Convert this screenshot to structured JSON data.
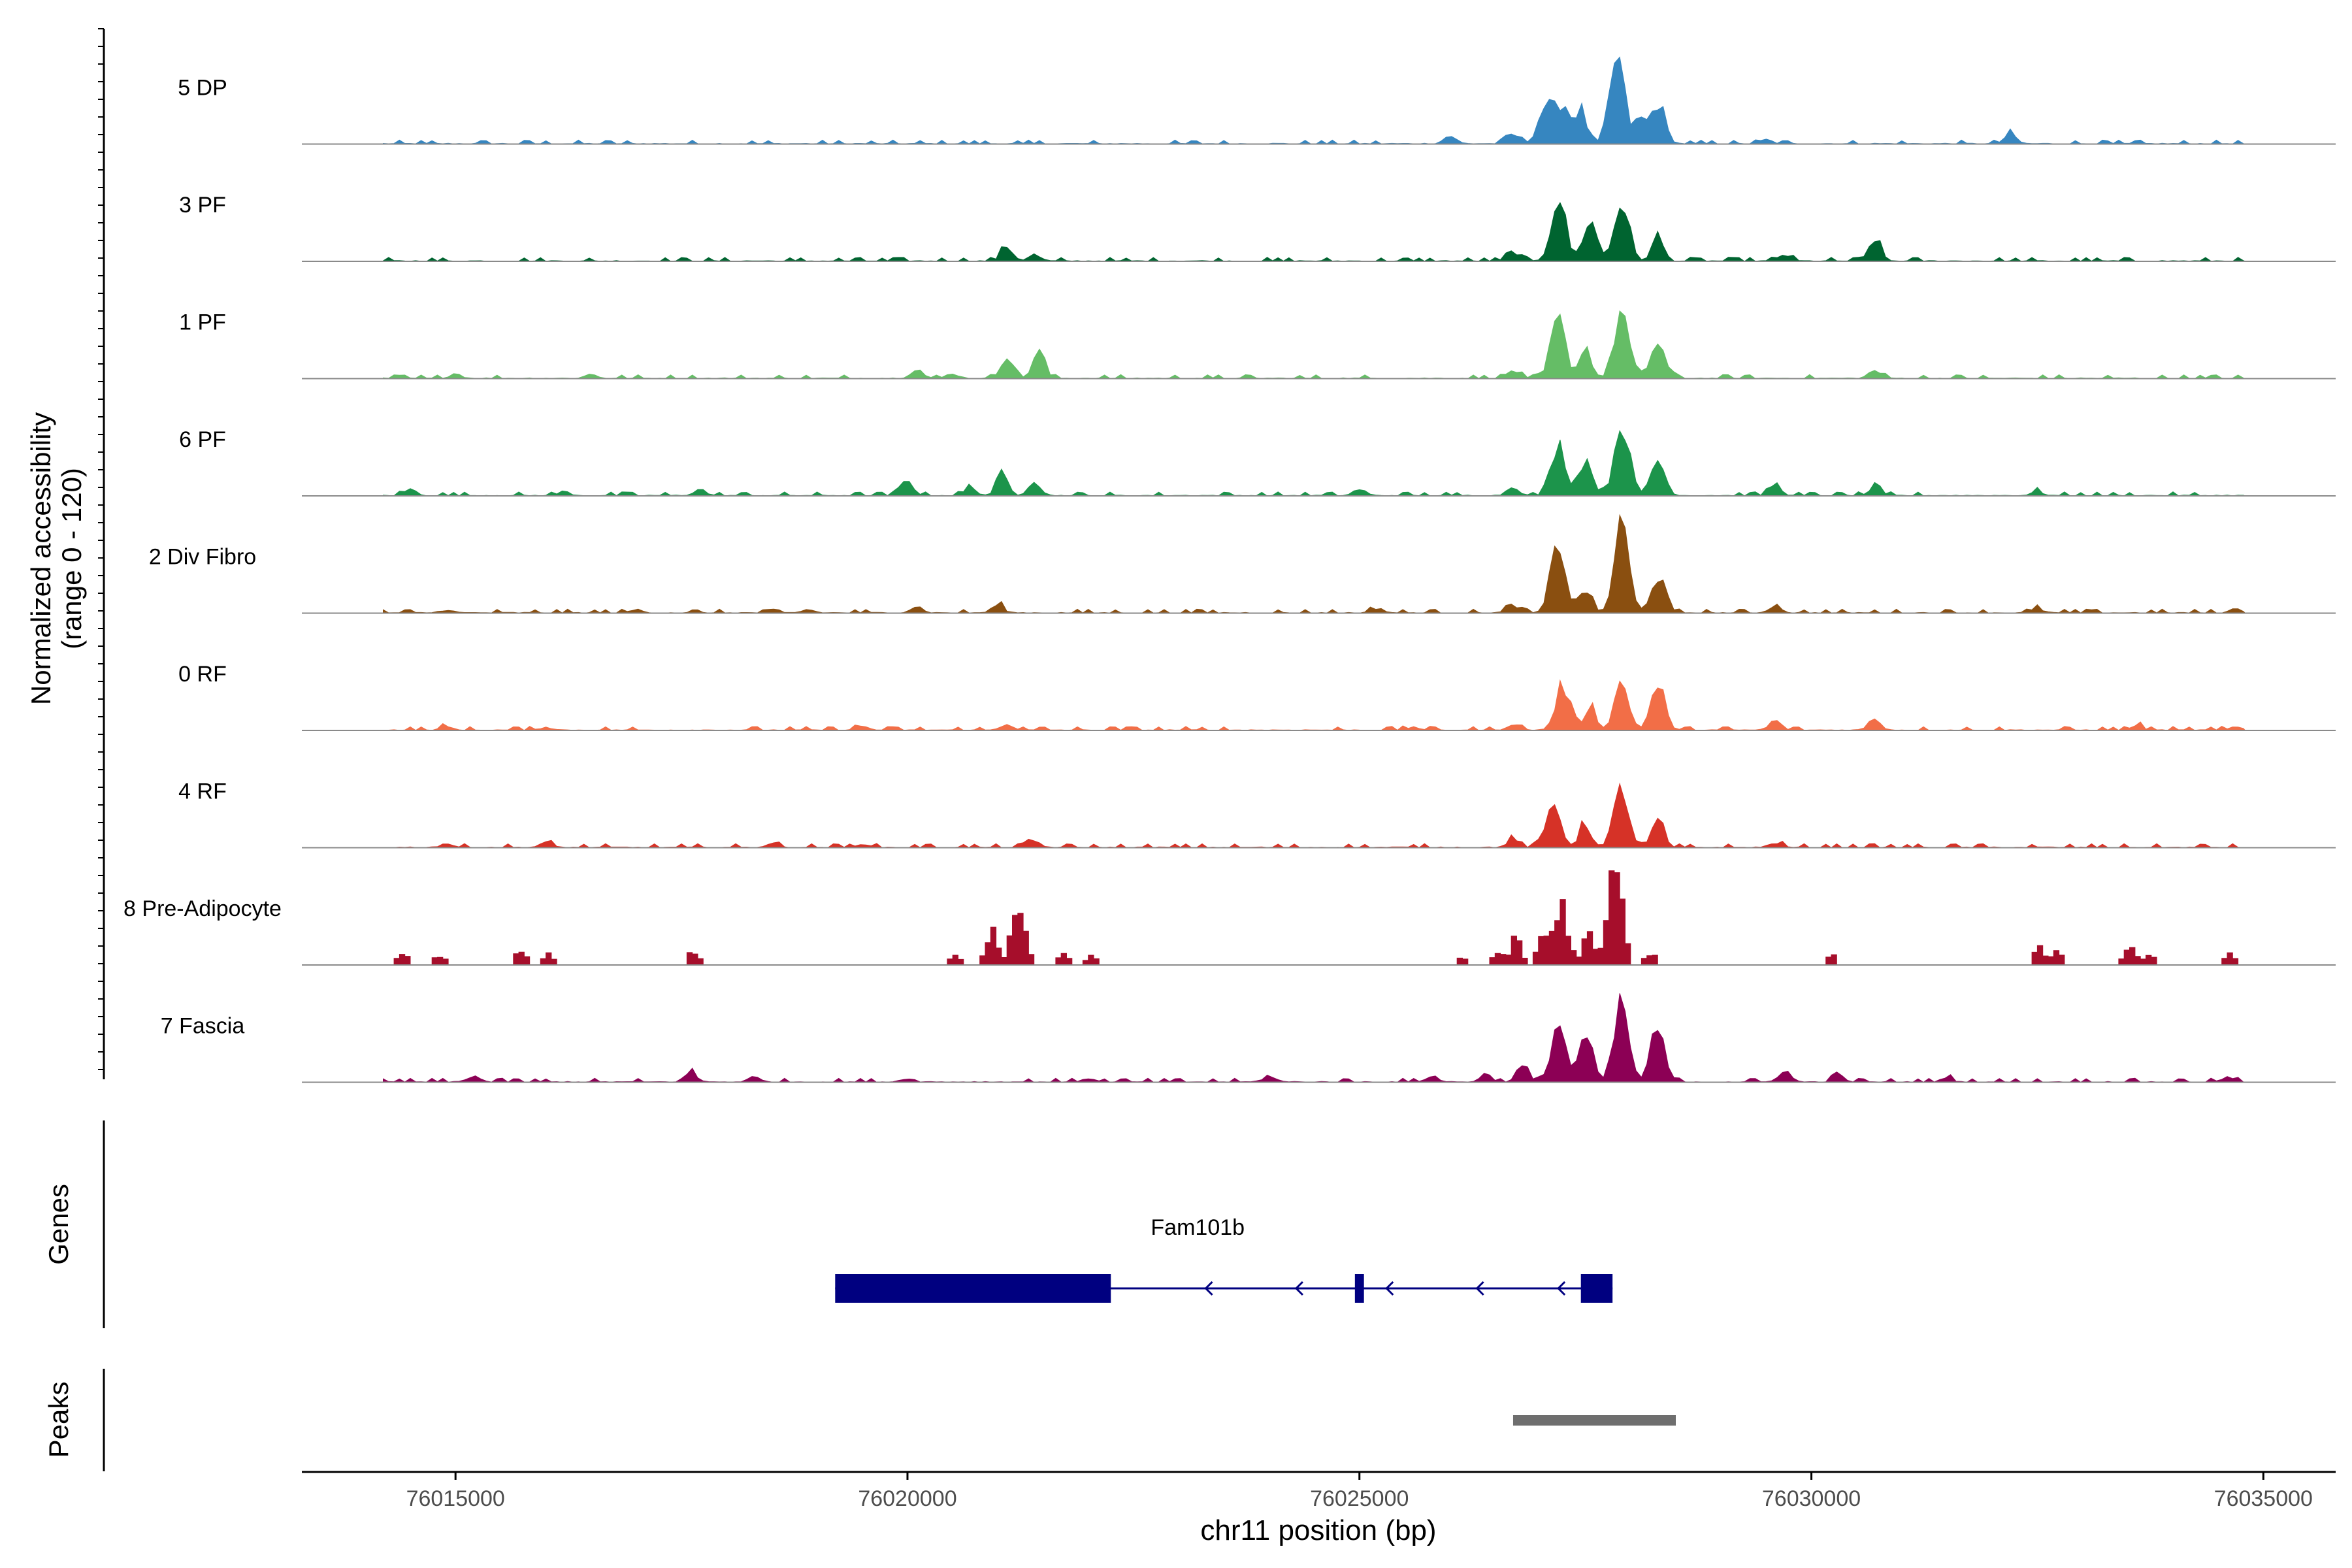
{
  "chart_data": {
    "type": "area",
    "title": "",
    "ylabel_line1": "Normalized accessibility",
    "ylabel_line2": "(range 0 - 120)",
    "xlabel": "chr11 position (bp)",
    "chromosome": "chr11",
    "xlim": [
      76013300,
      76035800
    ],
    "ylim": [
      0,
      120
    ],
    "x_ticks": [
      76015000,
      76020000,
      76025000,
      76030000,
      76035000
    ],
    "x_tick_labels": [
      "76015000",
      "76020000",
      "76025000",
      "76030000",
      "76035000"
    ],
    "tracks": [
      {
        "name": "5 DP",
        "color": "#3686C0",
        "style": "smooth",
        "peaks": [
          [
            76026000,
            10
          ],
          [
            76026700,
            12
          ],
          [
            76027050,
            45
          ],
          [
            76027250,
            50
          ],
          [
            76027450,
            40
          ],
          [
            76027850,
            110
          ],
          [
            76028100,
            30
          ],
          [
            76028300,
            50
          ],
          [
            76032200,
            12
          ],
          [
            76029500,
            5
          ]
        ]
      },
      {
        "name": "3 PF",
        "color": "#006430",
        "style": "smooth",
        "peaks": [
          [
            76021100,
            18
          ],
          [
            76021400,
            8
          ],
          [
            76026700,
            12
          ],
          [
            76027200,
            80
          ],
          [
            76027550,
            50
          ],
          [
            76027900,
            75
          ],
          [
            76028300,
            30
          ],
          [
            76030700,
            28
          ],
          [
            76029700,
            8
          ]
        ]
      },
      {
        "name": "1 PF",
        "color": "#65BD66",
        "style": "smooth",
        "peaks": [
          [
            76015000,
            6
          ],
          [
            76016500,
            5
          ],
          [
            76020100,
            12
          ],
          [
            76020500,
            6
          ],
          [
            76021100,
            30
          ],
          [
            76021450,
            35
          ],
          [
            76026700,
            10
          ],
          [
            76027200,
            75
          ],
          [
            76027500,
            40
          ],
          [
            76027900,
            85
          ],
          [
            76028300,
            45
          ],
          [
            76030700,
            10
          ]
        ]
      },
      {
        "name": "6 PF",
        "color": "#1C944B",
        "style": "smooth",
        "peaks": [
          [
            76014500,
            8
          ],
          [
            76016200,
            5
          ],
          [
            76017700,
            8
          ],
          [
            76020000,
            20
          ],
          [
            76020700,
            10
          ],
          [
            76021050,
            25
          ],
          [
            76021400,
            20
          ],
          [
            76025000,
            8
          ],
          [
            76026700,
            12
          ],
          [
            76027200,
            65
          ],
          [
            76027500,
            45
          ],
          [
            76027900,
            95
          ],
          [
            76028300,
            45
          ],
          [
            76029600,
            15
          ],
          [
            76030700,
            10
          ],
          [
            76032500,
            5
          ]
        ]
      },
      {
        "name": "2 Div Fibro",
        "color": "#8A4F10",
        "style": "smooth",
        "peaks": [
          [
            76014900,
            4
          ],
          [
            76017000,
            4
          ],
          [
            76018900,
            4
          ],
          [
            76020100,
            8
          ],
          [
            76021000,
            10
          ],
          [
            76025200,
            6
          ],
          [
            76026700,
            10
          ],
          [
            76027200,
            90
          ],
          [
            76027500,
            30
          ],
          [
            76027900,
            115
          ],
          [
            76028300,
            45
          ],
          [
            76029600,
            10
          ],
          [
            76032500,
            5
          ],
          [
            76034700,
            5
          ]
        ]
      },
      {
        "name": "0 RF",
        "color": "#F26E47",
        "style": "smooth",
        "peaks": [
          [
            76014900,
            4
          ],
          [
            76016000,
            4
          ],
          [
            76019500,
            5
          ],
          [
            76021100,
            8
          ],
          [
            76025600,
            4
          ],
          [
            76026700,
            8
          ],
          [
            76027250,
            55
          ],
          [
            76027550,
            30
          ],
          [
            76027900,
            60
          ],
          [
            76028300,
            55
          ],
          [
            76029600,
            12
          ],
          [
            76030700,
            15
          ],
          [
            76033600,
            6
          ],
          [
            76034700,
            4
          ]
        ]
      },
      {
        "name": "4 RF",
        "color": "#D63227",
        "style": "smooth",
        "peaks": [
          [
            76014900,
            5
          ],
          [
            76016000,
            6
          ],
          [
            76018500,
            5
          ],
          [
            76019500,
            5
          ],
          [
            76021400,
            8
          ],
          [
            76026700,
            10
          ],
          [
            76027150,
            55
          ],
          [
            76027500,
            30
          ],
          [
            76027900,
            75
          ],
          [
            76028300,
            35
          ],
          [
            76029600,
            6
          ]
        ]
      },
      {
        "name": "8 Pre-Adipocyte",
        "color": "#A60E2B",
        "style": "blocky",
        "peaks": [
          [
            76014400,
            15
          ],
          [
            76014800,
            12
          ],
          [
            76015700,
            18
          ],
          [
            76016000,
            12
          ],
          [
            76017600,
            15
          ],
          [
            76020500,
            10
          ],
          [
            76020900,
            40
          ],
          [
            76021200,
            70
          ],
          [
            76021700,
            12
          ],
          [
            76022000,
            10
          ],
          [
            76026100,
            10
          ],
          [
            76026500,
            15
          ],
          [
            76026700,
            30
          ],
          [
            76027000,
            35
          ],
          [
            76027200,
            70
          ],
          [
            76027500,
            35
          ],
          [
            76027800,
            120
          ],
          [
            76028200,
            15
          ],
          [
            76030200,
            12
          ],
          [
            76032500,
            20
          ],
          [
            76032700,
            18
          ],
          [
            76033500,
            22
          ],
          [
            76033700,
            12
          ],
          [
            76034600,
            15
          ]
        ]
      },
      {
        "name": "7 Fascia",
        "color": "#8C0055",
        "style": "smooth",
        "peaks": [
          [
            76015200,
            8
          ],
          [
            76017600,
            12
          ],
          [
            76018300,
            6
          ],
          [
            76020000,
            5
          ],
          [
            76022000,
            5
          ],
          [
            76024000,
            8
          ],
          [
            76025800,
            8
          ],
          [
            76026400,
            10
          ],
          [
            76026800,
            20
          ],
          [
            76027200,
            75
          ],
          [
            76027500,
            55
          ],
          [
            76027900,
            100
          ],
          [
            76028300,
            65
          ],
          [
            76029700,
            15
          ],
          [
            76030300,
            8
          ],
          [
            76031500,
            5
          ],
          [
            76034600,
            6
          ]
        ]
      }
    ],
    "genes": [
      {
        "name": "Fam101b",
        "strand": "-",
        "start": 76019200,
        "end": 76027800,
        "exons": [
          [
            76019200,
            76022250
          ],
          [
            76024950,
            76025050
          ],
          [
            76027450,
            76027800
          ]
        ]
      }
    ],
    "peaks_track": [
      [
        76026700,
        76028500
      ]
    ],
    "peaks_color": "#6E6E6E",
    "genes_color": "#000080",
    "genes_label": "Genes",
    "peaks_label": "Peaks"
  }
}
